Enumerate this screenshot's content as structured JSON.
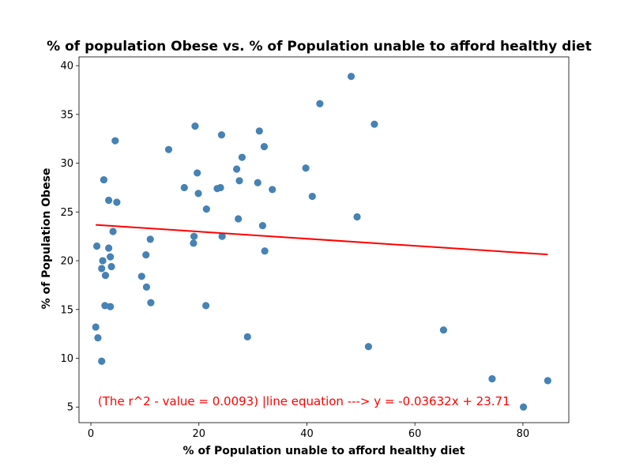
{
  "chart_data": {
    "type": "scatter",
    "title": "% of population Obese vs. % of Population unable to afford healthy diet",
    "xlabel": "% of Population unable to afford healthy diet",
    "ylabel": "% of Population Obese",
    "xlim": [
      -2.2,
      88.5
    ],
    "ylim": [
      3.4,
      40.9
    ],
    "xticks": [
      0,
      20,
      40,
      60,
      80
    ],
    "yticks": [
      5,
      10,
      15,
      20,
      25,
      30,
      35,
      40
    ],
    "grid": false,
    "point_color": "#4682b4",
    "line_color": "#ff0000",
    "points": [
      {
        "x": 1.1,
        "y": 21.5
      },
      {
        "x": 0.9,
        "y": 13.2
      },
      {
        "x": 1.3,
        "y": 12.1
      },
      {
        "x": 2.0,
        "y": 9.7
      },
      {
        "x": 2.0,
        "y": 19.2
      },
      {
        "x": 2.2,
        "y": 20.0
      },
      {
        "x": 2.4,
        "y": 28.3
      },
      {
        "x": 2.6,
        "y": 15.4
      },
      {
        "x": 2.7,
        "y": 18.5
      },
      {
        "x": 3.3,
        "y": 21.3
      },
      {
        "x": 3.3,
        "y": 26.2
      },
      {
        "x": 3.6,
        "y": 20.4
      },
      {
        "x": 3.6,
        "y": 15.3
      },
      {
        "x": 3.8,
        "y": 19.4
      },
      {
        "x": 4.1,
        "y": 23.0
      },
      {
        "x": 4.5,
        "y": 32.3
      },
      {
        "x": 4.8,
        "y": 26.0
      },
      {
        "x": 9.4,
        "y": 18.4
      },
      {
        "x": 10.2,
        "y": 20.6
      },
      {
        "x": 10.3,
        "y": 17.3
      },
      {
        "x": 11.0,
        "y": 22.2
      },
      {
        "x": 11.1,
        "y": 15.7
      },
      {
        "x": 14.4,
        "y": 31.4
      },
      {
        "x": 17.3,
        "y": 27.5
      },
      {
        "x": 19.0,
        "y": 21.8
      },
      {
        "x": 19.1,
        "y": 22.5
      },
      {
        "x": 19.3,
        "y": 33.8
      },
      {
        "x": 19.7,
        "y": 29.0
      },
      {
        "x": 19.9,
        "y": 26.9
      },
      {
        "x": 21.3,
        "y": 15.4
      },
      {
        "x": 21.4,
        "y": 25.3
      },
      {
        "x": 23.4,
        "y": 27.4
      },
      {
        "x": 24.0,
        "y": 27.5
      },
      {
        "x": 24.2,
        "y": 32.9
      },
      {
        "x": 24.3,
        "y": 22.5
      },
      {
        "x": 27.0,
        "y": 29.4
      },
      {
        "x": 27.3,
        "y": 24.3
      },
      {
        "x": 27.5,
        "y": 28.2
      },
      {
        "x": 28.0,
        "y": 30.6
      },
      {
        "x": 29.0,
        "y": 12.2
      },
      {
        "x": 30.9,
        "y": 28.0
      },
      {
        "x": 31.2,
        "y": 33.3
      },
      {
        "x": 31.8,
        "y": 23.6
      },
      {
        "x": 32.1,
        "y": 31.7
      },
      {
        "x": 32.2,
        "y": 21.0
      },
      {
        "x": 33.6,
        "y": 27.3
      },
      {
        "x": 39.8,
        "y": 29.5
      },
      {
        "x": 41.0,
        "y": 26.6
      },
      {
        "x": 42.4,
        "y": 36.1
      },
      {
        "x": 48.2,
        "y": 38.9
      },
      {
        "x": 49.3,
        "y": 24.5
      },
      {
        "x": 51.4,
        "y": 11.2
      },
      {
        "x": 52.5,
        "y": 34.0
      },
      {
        "x": 65.3,
        "y": 12.9
      },
      {
        "x": 74.3,
        "y": 7.9
      },
      {
        "x": 80.1,
        "y": 5.0
      },
      {
        "x": 84.6,
        "y": 7.7
      }
    ],
    "regression": {
      "slope": -0.03632,
      "intercept": 23.71,
      "x_start": 0.9,
      "x_end": 84.6
    },
    "annotation": {
      "text": "(The r^2 - value = 0.0093) |line equation ---> y = -0.03632x + 23.71",
      "x": 1.3,
      "y": 5,
      "color": "#ff0000"
    }
  }
}
